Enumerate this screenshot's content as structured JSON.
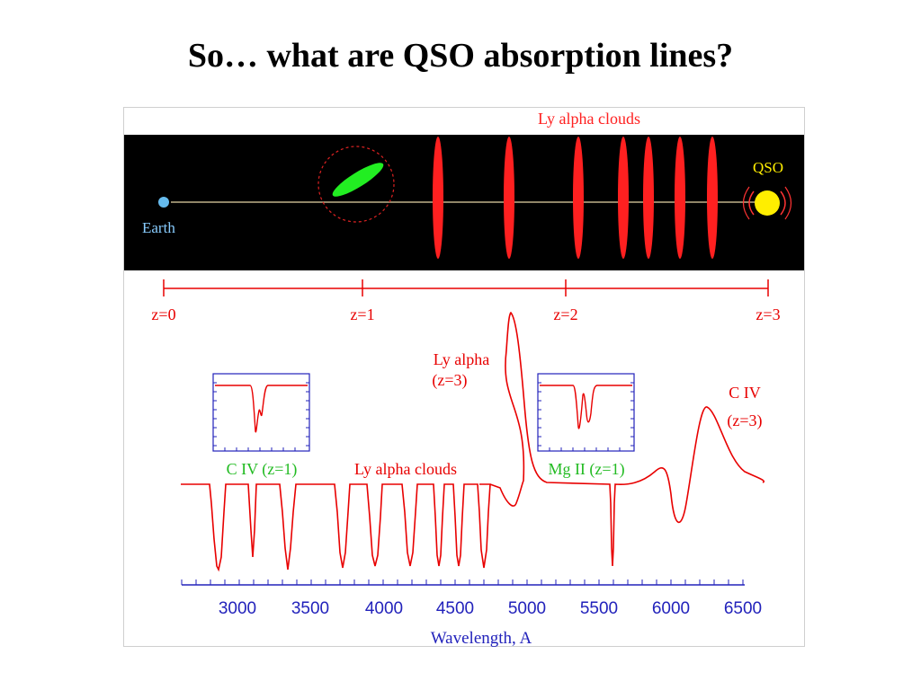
{
  "slide": {
    "title": "So… what are QSO absorption lines?"
  },
  "diagram": {
    "cloud_label": "Ly alpha clouds",
    "qso_label": "QSO",
    "earth_label": "Earth",
    "redshift_scale": [
      "z=0",
      "z=1",
      "z=2",
      "z=3"
    ]
  },
  "spectrum": {
    "labels": {
      "ly_alpha_peak": [
        "Ly alpha",
        "(z=3)"
      ],
      "civ_peak": [
        "C IV",
        "(z=3)"
      ],
      "civ_inset": "C IV (z=1)",
      "ly_alpha_clouds": "Ly alpha clouds",
      "mgii_inset": "Mg II (z=1)"
    },
    "x_axis_label": "Wavelength, A",
    "x_ticks": [
      "3000",
      "3500",
      "4000",
      "4500",
      "5000",
      "5500",
      "6000",
      "6500"
    ]
  },
  "colors": {
    "space_background": "#000000",
    "cloud_red": "#ff2020",
    "line_red": "#e80000",
    "galaxy_green": "#22ee22",
    "qso_yellow": "#ffee00",
    "earth_blue": "#66bbee",
    "axis_blue": "#2222bb",
    "title_black": "#000000"
  }
}
